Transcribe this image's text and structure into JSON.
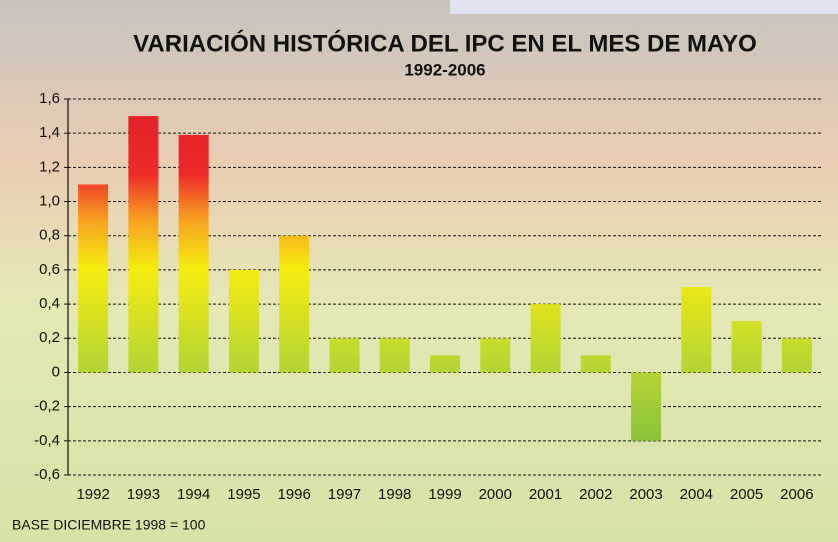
{
  "chart_data": {
    "type": "bar",
    "title": "VARIACIÓN HISTÓRICA DEL IPC EN EL MES DE MAYO",
    "subtitle": "1992-2006",
    "note": "BASE DICIEMBRE 1998 = 100",
    "categories": [
      "1992",
      "1993",
      "1994",
      "1995",
      "1996",
      "1997",
      "1998",
      "1999",
      "2000",
      "2001",
      "2002",
      "2003",
      "2004",
      "2005",
      "2006"
    ],
    "values": [
      1.1,
      1.5,
      1.39,
      0.6,
      0.8,
      0.2,
      0.2,
      0.1,
      0.2,
      0.4,
      0.1,
      -0.4,
      0.5,
      0.3,
      0.2
    ],
    "ylim": [
      -0.6,
      1.6
    ],
    "yticks": [
      {
        "value": 1.6,
        "label": "1,6"
      },
      {
        "value": 1.4,
        "label": "1,4"
      },
      {
        "value": 1.2,
        "label": "1,2"
      },
      {
        "value": 1.0,
        "label": "1,0"
      },
      {
        "value": 0.8,
        "label": "0,8"
      },
      {
        "value": 0.6,
        "label": "0,6"
      },
      {
        "value": 0.4,
        "label": "0,4"
      },
      {
        "value": 0.2,
        "label": "0,2"
      },
      0,
      {
        "value": -0.2,
        "label": "-0,2"
      },
      {
        "value": -0.4,
        "label": "-0,4"
      },
      {
        "value": -0.6,
        "label": "-0,6"
      }
    ],
    "grid": true
  }
}
